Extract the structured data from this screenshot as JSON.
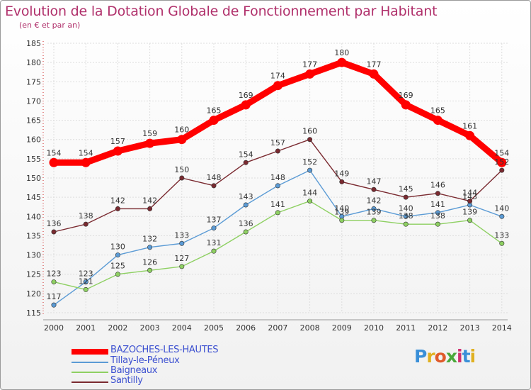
{
  "title": "Evolution de la Dotation Globale de Fonctionnement par Habitant",
  "subtitle": "(en € et par an)",
  "logo": {
    "text": "Proxiti",
    "colors": [
      "#3a8fd8",
      "#e0b020",
      "#e05a2a",
      "#4aa83a",
      "#d03070",
      "#3a8fd8",
      "#e0b020"
    ]
  },
  "chart_data": {
    "type": "line",
    "title": "Evolution de la Dotation Globale de Fonctionnement par Habitant",
    "subtitle": "(en € et par an)",
    "categories": [
      "2000",
      "2001",
      "2002",
      "2003",
      "2004",
      "2005",
      "2006",
      "2007",
      "2008",
      "2009",
      "2010",
      "2011",
      "2012",
      "2013",
      "2014"
    ],
    "ylim": [
      115,
      185
    ],
    "yticks": [
      115,
      120,
      125,
      130,
      135,
      140,
      145,
      150,
      155,
      160,
      165,
      170,
      175,
      180,
      185
    ],
    "grid": true,
    "legend_position": "bottom-left",
    "series": [
      {
        "name": "Tillay-le-Péneux",
        "color": "#5b9bd5",
        "values": [
          117,
          123,
          130,
          132,
          133,
          137,
          143,
          148,
          152,
          140,
          142,
          140,
          141,
          143,
          140
        ]
      },
      {
        "name": "Baigneaux",
        "color": "#8ed062",
        "values": [
          123,
          121,
          125,
          126,
          127,
          131,
          136,
          141,
          144,
          139,
          139,
          138,
          138,
          139,
          133
        ]
      },
      {
        "name": "Santilly",
        "color": "#7a2a30",
        "values": [
          136,
          138,
          142,
          142,
          150,
          148,
          154,
          157,
          160,
          149,
          147,
          145,
          146,
          144,
          152
        ]
      },
      {
        "name": "BAZOCHES-LES-HAUTES",
        "color": "#ff0000",
        "values": [
          154,
          154,
          157,
          159,
          160,
          165,
          169,
          174,
          177,
          180,
          177,
          169,
          165,
          161,
          154
        ]
      }
    ],
    "legend_order": [
      "BAZOCHES-LES-HAUTES",
      "Tillay-le-Péneux",
      "Baigneaux",
      "Santilly"
    ]
  }
}
